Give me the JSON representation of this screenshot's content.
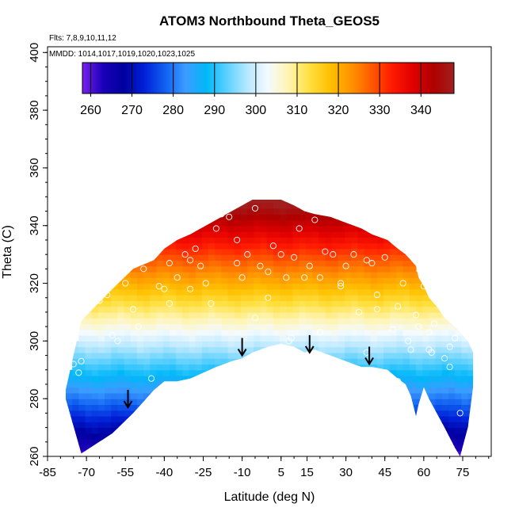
{
  "chart_data": {
    "type": "heatmap",
    "title": "ATOM3 Northbound Theta_GEOS5",
    "subtitle_flights": "Flts: 7,8,9,10,11,12",
    "subtitle_dates": "MMDD: 1014,1017,1019,1020,1023,1025",
    "xlabel": "Latitude (deg N)",
    "ylabel": "Theta (C)",
    "xlim": [
      -85,
      86
    ],
    "ylim": [
      260,
      402
    ],
    "x_ticks": [
      -85,
      -70,
      -55,
      -40,
      -25,
      -10,
      5,
      15,
      30,
      45,
      60,
      75
    ],
    "y_ticks": [
      260,
      280,
      300,
      320,
      340,
      360,
      380,
      400
    ],
    "colorbar": {
      "range": [
        258,
        348
      ],
      "ticks": [
        260,
        270,
        280,
        290,
        300,
        310,
        320,
        330,
        340
      ],
      "colors": [
        "#7a1ff0",
        "#1a00b8",
        "#00009e",
        "#0020d8",
        "#1060f0",
        "#3c9cff",
        "#00b8f8",
        "#5cd0ff",
        "#b8e8ff",
        "#f4faff",
        "#fff4b0",
        "#ffe040",
        "#ffc000",
        "#ff9400",
        "#ff5a00",
        "#ff1a00",
        "#e00000",
        "#b00000",
        "#a02020"
      ]
    },
    "surface_envelope": {
      "latitude": [
        -78,
        -72,
        -60,
        -52,
        -44,
        -40,
        -35,
        -30,
        -20,
        -14,
        -10,
        -6,
        0,
        5,
        10,
        14,
        18,
        24,
        30,
        36,
        40,
        46,
        50,
        53,
        55,
        57,
        58,
        60,
        62,
        65,
        68,
        72,
        74,
        77,
        79,
        79
      ],
      "theta_bottom": [
        280,
        261,
        268,
        275,
        283,
        286,
        286,
        287,
        291,
        293,
        294,
        296,
        298,
        299,
        298,
        296,
        297,
        295,
        293,
        291,
        291,
        290,
        287,
        285,
        281,
        274,
        278,
        284,
        280,
        275,
        270,
        263,
        260,
        270,
        284,
        284
      ],
      "theta_top": [
        283,
        307,
        318,
        325,
        328,
        332,
        335,
        337,
        342,
        345,
        347,
        349,
        349,
        349,
        347,
        345,
        344,
        343,
        341,
        339,
        337,
        335,
        332,
        330,
        328,
        326,
        322,
        319,
        315,
        312,
        308,
        305,
        303,
        300,
        296,
        284
      ]
    },
    "observations": {
      "marker": "open-circle",
      "latitude": [
        -82,
        -80,
        -77,
        -75,
        -73,
        -70,
        -68,
        -65,
        -62,
        -58,
        -55,
        -52,
        -50,
        -48,
        -45,
        -42,
        -40,
        -38,
        -35,
        -32,
        -30,
        -28,
        -26,
        -24,
        -20,
        -18,
        -15,
        -12,
        -10,
        -8,
        -5,
        -3,
        0,
        2,
        5,
        7,
        8,
        10,
        12,
        14,
        16,
        18,
        20,
        22,
        25,
        28,
        30,
        33,
        35,
        38,
        40,
        42,
        45,
        48,
        50,
        52,
        54,
        55,
        57,
        58,
        60,
        62,
        64,
        66,
        68,
        70,
        72,
        74,
        -72,
        -60,
        -45,
        -38,
        -22,
        -5,
        9,
        28,
        42,
        55,
        63,
        70,
        50,
        20,
        -30,
        -12,
        0,
        38,
        62
      ],
      "theta": [
        295,
        286,
        302,
        292,
        289,
        315,
        320,
        314,
        316,
        300,
        320,
        311,
        305,
        325,
        330,
        319,
        318,
        327,
        322,
        330,
        328,
        332,
        326,
        320,
        339,
        344,
        343,
        335,
        322,
        330,
        346,
        326,
        324,
        333,
        330,
        322,
        300,
        329,
        339,
        322,
        326,
        342,
        322,
        331,
        330,
        320,
        326,
        330,
        310,
        328,
        327,
        316,
        329,
        304,
        312,
        320,
        300,
        330,
        309,
        305,
        319,
        303,
        306,
        318,
        294,
        298,
        301,
        275,
        293,
        302,
        287,
        313,
        313,
        308,
        301,
        319,
        311,
        297,
        296,
        291,
        286,
        303,
        318,
        327,
        315,
        296,
        297
      ]
    },
    "annotations": {
      "type": "down-arrow",
      "latitude": [
        -54,
        -10,
        16,
        39
      ],
      "theta_tip": [
        277,
        295,
        296,
        292
      ]
    }
  }
}
